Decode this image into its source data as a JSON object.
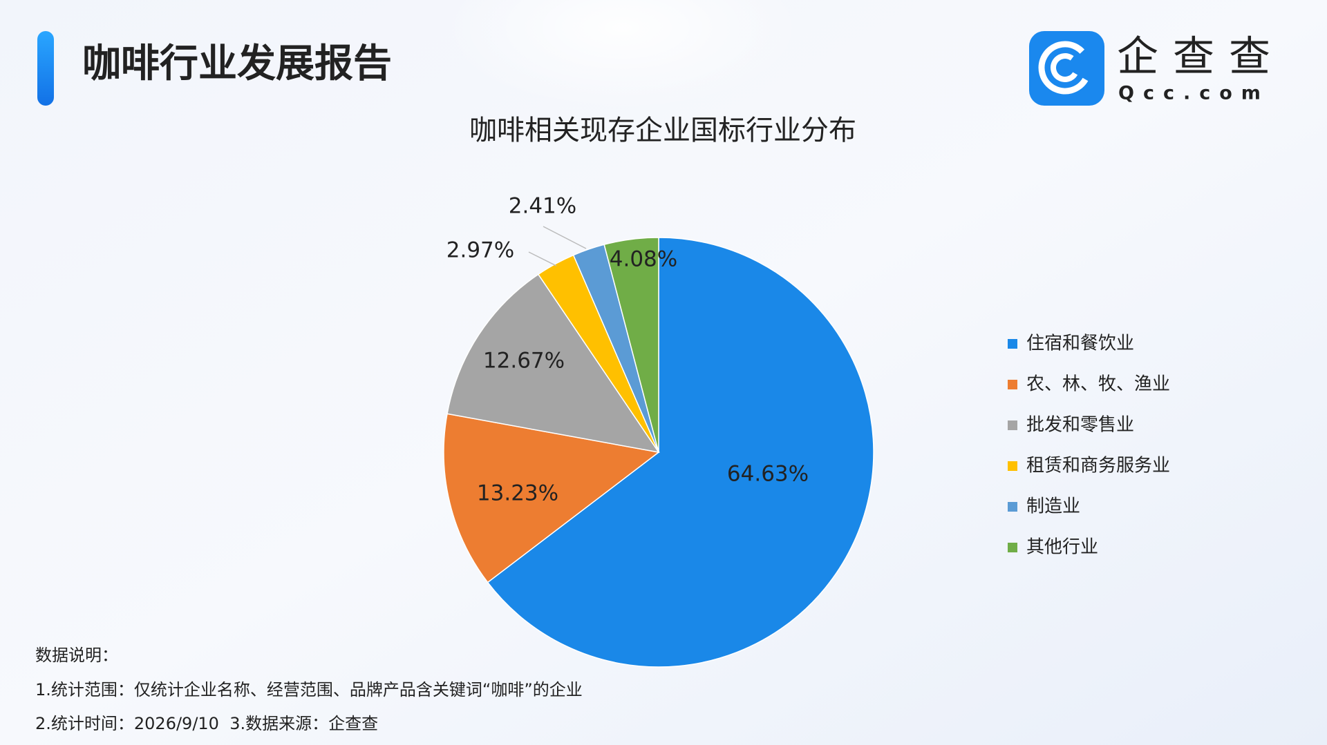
{
  "header": {
    "title": "咖啡行业发展报告",
    "logo_text": "企查查",
    "logo_domain": "Qcc.com"
  },
  "chart_data": {
    "type": "pie",
    "title": "咖啡相关现存企业国标行业分布",
    "categories": [
      "住宿和餐饮业",
      "农、林、牧、渔业",
      "批发和零售业",
      "租赁和商务服务业",
      "制造业",
      "其他行业"
    ],
    "values": [
      64.63,
      13.23,
      12.67,
      2.97,
      2.41,
      4.08
    ],
    "value_labels": [
      "64.63%",
      "13.23%",
      "12.67%",
      "2.97%",
      "2.41%",
      "4.08%"
    ],
    "colors": [
      "#1a88e8",
      "#ed7d31",
      "#a5a5a5",
      "#ffc000",
      "#5b9bd5",
      "#70ad47"
    ],
    "legend": "right"
  },
  "notes": {
    "heading": "数据说明：",
    "lines": [
      "1.统计范围：仅统计企业名称、经营范围、品牌产品含关键词“咖啡”的企业",
      "2.统计时间：2026/9/10  3.数据来源：企查查"
    ]
  }
}
